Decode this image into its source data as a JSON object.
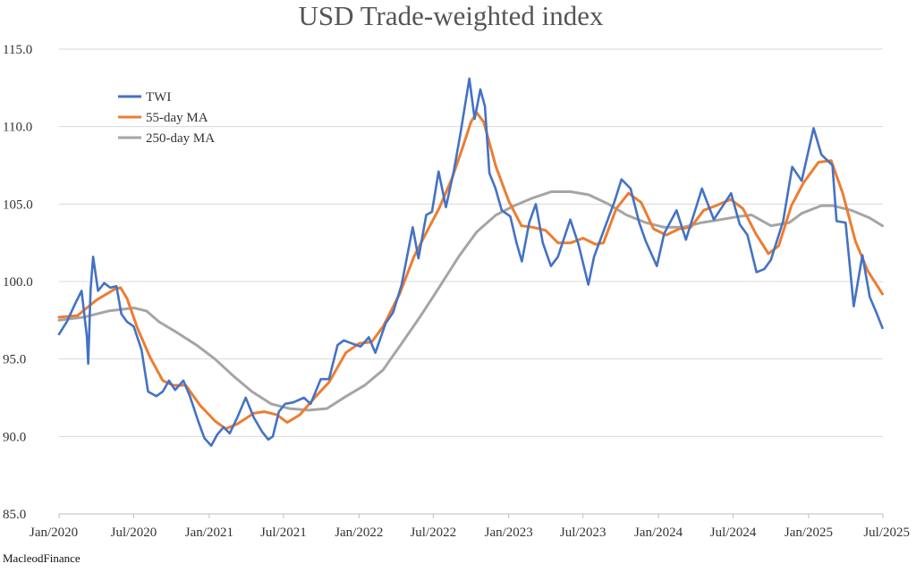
{
  "chart_data": {
    "type": "line",
    "title": "USD Trade-weighted index",
    "source": "MacleodFinance",
    "xlabel": "",
    "ylabel": "",
    "x_range": [
      "2020-01-01",
      "2025-07-01"
    ],
    "ylim": [
      85,
      115
    ],
    "y_ticks": [
      85,
      90,
      95,
      100,
      105,
      110,
      115
    ],
    "y_tick_labels": [
      "85.0",
      "90.0",
      "95.0",
      "100.0",
      "105.0",
      "110.0",
      "115.0"
    ],
    "x_ticks": [
      "2020-01-01",
      "2020-07-01",
      "2021-01-01",
      "2021-07-01",
      "2022-01-01",
      "2022-07-01",
      "2023-01-01",
      "2023-07-01",
      "2024-01-01",
      "2024-07-01",
      "2025-01-01",
      "2025-07-01"
    ],
    "x_tick_labels": [
      "Jan/2020",
      "Jul/2020",
      "Jan/2021",
      "Jul/2021",
      "Jan/2022",
      "Jul/2022",
      "Jan/2023",
      "Jul/2023",
      "Jan/2024",
      "Jul/2024",
      "Jan/2025",
      "Jul/2025"
    ],
    "grid": "horizontal",
    "legend_position": "top-left",
    "series": [
      {
        "name": "TWI",
        "color": "#4472C4",
        "points": [
          [
            "2020-01-01",
            96.6
          ],
          [
            "2020-01-20",
            97.4
          ],
          [
            "2020-02-10",
            98.6
          ],
          [
            "2020-02-25",
            99.4
          ],
          [
            "2020-03-09",
            96.4
          ],
          [
            "2020-03-12",
            94.7
          ],
          [
            "2020-03-18",
            99.5
          ],
          [
            "2020-03-24",
            101.6
          ],
          [
            "2020-04-05",
            99.4
          ],
          [
            "2020-04-20",
            99.9
          ],
          [
            "2020-05-05",
            99.6
          ],
          [
            "2020-05-20",
            99.7
          ],
          [
            "2020-06-01",
            97.9
          ],
          [
            "2020-06-15",
            97.4
          ],
          [
            "2020-07-01",
            97.1
          ],
          [
            "2020-07-20",
            95.6
          ],
          [
            "2020-08-05",
            92.9
          ],
          [
            "2020-08-25",
            92.6
          ],
          [
            "2020-09-10",
            92.9
          ],
          [
            "2020-09-25",
            93.6
          ],
          [
            "2020-10-10",
            93.0
          ],
          [
            "2020-10-30",
            93.6
          ],
          [
            "2020-11-15",
            92.6
          ],
          [
            "2020-12-05",
            91.0
          ],
          [
            "2020-12-20",
            89.9
          ],
          [
            "2021-01-06",
            89.4
          ],
          [
            "2021-01-20",
            90.1
          ],
          [
            "2021-02-05",
            90.6
          ],
          [
            "2021-02-20",
            90.2
          ],
          [
            "2021-03-10",
            91.2
          ],
          [
            "2021-03-31",
            92.5
          ],
          [
            "2021-04-20",
            91.2
          ],
          [
            "2021-05-10",
            90.3
          ],
          [
            "2021-05-25",
            89.8
          ],
          [
            "2021-06-05",
            90.0
          ],
          [
            "2021-06-20",
            91.6
          ],
          [
            "2021-07-05",
            92.1
          ],
          [
            "2021-07-25",
            92.2
          ],
          [
            "2021-08-20",
            92.5
          ],
          [
            "2021-09-05",
            92.1
          ],
          [
            "2021-09-30",
            93.7
          ],
          [
            "2021-10-20",
            93.7
          ],
          [
            "2021-11-10",
            95.9
          ],
          [
            "2021-11-25",
            96.2
          ],
          [
            "2021-12-15",
            96.0
          ],
          [
            "2022-01-05",
            95.8
          ],
          [
            "2022-01-25",
            96.4
          ],
          [
            "2022-02-10",
            95.4
          ],
          [
            "2022-03-07",
            97.3
          ],
          [
            "2022-03-25",
            98.0
          ],
          [
            "2022-04-15",
            99.8
          ],
          [
            "2022-05-12",
            103.5
          ],
          [
            "2022-05-26",
            101.5
          ],
          [
            "2022-06-14",
            104.3
          ],
          [
            "2022-06-28",
            104.5
          ],
          [
            "2022-07-14",
            107.1
          ],
          [
            "2022-08-01",
            104.8
          ],
          [
            "2022-08-20",
            107.1
          ],
          [
            "2022-09-05",
            109.5
          ],
          [
            "2022-09-27",
            113.1
          ],
          [
            "2022-10-10",
            110.5
          ],
          [
            "2022-10-24",
            112.4
          ],
          [
            "2022-11-04",
            111.3
          ],
          [
            "2022-11-15",
            107.0
          ],
          [
            "2022-11-30",
            106.0
          ],
          [
            "2022-12-15",
            104.6
          ],
          [
            "2023-01-05",
            104.2
          ],
          [
            "2023-01-20",
            102.5
          ],
          [
            "2023-02-02",
            101.3
          ],
          [
            "2023-02-20",
            103.8
          ],
          [
            "2023-03-08",
            105.0
          ],
          [
            "2023-03-25",
            102.5
          ],
          [
            "2023-04-14",
            101.0
          ],
          [
            "2023-05-01",
            101.6
          ],
          [
            "2023-05-31",
            104.0
          ],
          [
            "2023-06-20",
            102.4
          ],
          [
            "2023-07-14",
            99.8
          ],
          [
            "2023-07-28",
            101.6
          ],
          [
            "2023-08-25",
            103.6
          ],
          [
            "2023-09-15",
            105.1
          ],
          [
            "2023-10-03",
            106.6
          ],
          [
            "2023-10-25",
            106.0
          ],
          [
            "2023-11-15",
            103.8
          ],
          [
            "2023-12-01",
            102.6
          ],
          [
            "2023-12-28",
            101.0
          ],
          [
            "2024-01-15",
            103.1
          ],
          [
            "2024-02-14",
            104.6
          ],
          [
            "2024-03-08",
            102.7
          ],
          [
            "2024-04-16",
            106.0
          ],
          [
            "2024-05-15",
            104.0
          ],
          [
            "2024-06-26",
            105.7
          ],
          [
            "2024-07-17",
            103.7
          ],
          [
            "2024-08-05",
            103.0
          ],
          [
            "2024-08-27",
            100.6
          ],
          [
            "2024-09-15",
            100.8
          ],
          [
            "2024-10-01",
            101.4
          ],
          [
            "2024-10-31",
            103.9
          ],
          [
            "2024-11-22",
            107.4
          ],
          [
            "2024-12-15",
            106.5
          ],
          [
            "2025-01-13",
            109.9
          ],
          [
            "2025-02-01",
            108.2
          ],
          [
            "2025-02-28",
            107.5
          ],
          [
            "2025-03-10",
            103.9
          ],
          [
            "2025-04-01",
            103.8
          ],
          [
            "2025-04-21",
            98.4
          ],
          [
            "2025-05-12",
            101.7
          ],
          [
            "2025-05-30",
            99.0
          ],
          [
            "2025-06-15",
            98.0
          ],
          [
            "2025-06-30",
            97.0
          ]
        ]
      },
      {
        "name": "55-day MA",
        "color": "#ED7D31",
        "points": [
          [
            "2020-01-01",
            97.7
          ],
          [
            "2020-02-15",
            97.8
          ],
          [
            "2020-04-01",
            98.8
          ],
          [
            "2020-05-15",
            99.5
          ],
          [
            "2020-05-30",
            99.6
          ],
          [
            "2020-06-15",
            98.9
          ],
          [
            "2020-07-10",
            97.0
          ],
          [
            "2020-08-10",
            95.1
          ],
          [
            "2020-09-10",
            93.6
          ],
          [
            "2020-10-05",
            93.3
          ],
          [
            "2020-11-05",
            93.3
          ],
          [
            "2020-12-10",
            92.0
          ],
          [
            "2021-01-15",
            91.0
          ],
          [
            "2021-02-10",
            90.5
          ],
          [
            "2021-03-10",
            90.8
          ],
          [
            "2021-04-20",
            91.5
          ],
          [
            "2021-05-15",
            91.6
          ],
          [
            "2021-06-15",
            91.4
          ],
          [
            "2021-07-10",
            90.9
          ],
          [
            "2021-08-10",
            91.4
          ],
          [
            "2021-09-15",
            92.5
          ],
          [
            "2021-10-20",
            93.5
          ],
          [
            "2021-11-30",
            95.4
          ],
          [
            "2022-01-01",
            96.0
          ],
          [
            "2022-02-01",
            96.1
          ],
          [
            "2022-03-01",
            97.1
          ],
          [
            "2022-04-10",
            99.2
          ],
          [
            "2022-05-15",
            101.6
          ],
          [
            "2022-06-15",
            103.2
          ],
          [
            "2022-07-15",
            104.7
          ],
          [
            "2022-08-15",
            106.6
          ],
          [
            "2022-09-10",
            108.6
          ],
          [
            "2022-10-01",
            110.3
          ],
          [
            "2022-10-15",
            110.9
          ],
          [
            "2022-11-01",
            110.3
          ],
          [
            "2022-12-01",
            107.4
          ],
          [
            "2023-01-01",
            105.2
          ],
          [
            "2023-02-01",
            103.6
          ],
          [
            "2023-03-01",
            103.5
          ],
          [
            "2023-04-01",
            103.3
          ],
          [
            "2023-05-01",
            102.5
          ],
          [
            "2023-06-01",
            102.5
          ],
          [
            "2023-07-01",
            102.8
          ],
          [
            "2023-08-01",
            102.4
          ],
          [
            "2023-08-20",
            102.5
          ],
          [
            "2023-09-20",
            104.7
          ],
          [
            "2023-10-20",
            105.7
          ],
          [
            "2023-11-20",
            105.1
          ],
          [
            "2023-12-20",
            103.4
          ],
          [
            "2024-01-20",
            103.0
          ],
          [
            "2024-02-20",
            103.4
          ],
          [
            "2024-03-20",
            103.5
          ],
          [
            "2024-04-20",
            104.6
          ],
          [
            "2024-05-20",
            104.9
          ],
          [
            "2024-06-25",
            105.3
          ],
          [
            "2024-07-25",
            104.7
          ],
          [
            "2024-08-25",
            103.1
          ],
          [
            "2024-09-25",
            101.8
          ],
          [
            "2024-10-20",
            102.3
          ],
          [
            "2024-11-20",
            104.9
          ],
          [
            "2024-12-20",
            106.4
          ],
          [
            "2025-01-25",
            107.7
          ],
          [
            "2025-02-25",
            107.8
          ],
          [
            "2025-03-25",
            105.7
          ],
          [
            "2025-04-25",
            102.6
          ],
          [
            "2025-05-25",
            100.7
          ],
          [
            "2025-06-30",
            99.2
          ]
        ]
      },
      {
        "name": "250-day MA",
        "color": "#A5A5A5",
        "points": [
          [
            "2020-01-01",
            97.5
          ],
          [
            "2020-03-01",
            97.7
          ],
          [
            "2020-05-01",
            98.1
          ],
          [
            "2020-07-01",
            98.3
          ],
          [
            "2020-08-01",
            98.1
          ],
          [
            "2020-09-01",
            97.4
          ],
          [
            "2020-10-15",
            96.7
          ],
          [
            "2020-12-01",
            95.9
          ],
          [
            "2021-01-15",
            95.0
          ],
          [
            "2021-03-01",
            93.9
          ],
          [
            "2021-04-15",
            92.9
          ],
          [
            "2021-06-01",
            92.1
          ],
          [
            "2021-07-15",
            91.8
          ],
          [
            "2021-09-01",
            91.7
          ],
          [
            "2021-10-15",
            91.8
          ],
          [
            "2021-12-01",
            92.6
          ],
          [
            "2022-01-15",
            93.3
          ],
          [
            "2022-03-01",
            94.3
          ],
          [
            "2022-04-15",
            96.0
          ],
          [
            "2022-06-01",
            97.8
          ],
          [
            "2022-07-15",
            99.6
          ],
          [
            "2022-09-01",
            101.6
          ],
          [
            "2022-10-15",
            103.2
          ],
          [
            "2022-12-01",
            104.3
          ],
          [
            "2023-01-15",
            104.9
          ],
          [
            "2023-03-01",
            105.4
          ],
          [
            "2023-04-15",
            105.8
          ],
          [
            "2023-06-01",
            105.8
          ],
          [
            "2023-07-15",
            105.6
          ],
          [
            "2023-09-01",
            105.0
          ],
          [
            "2023-10-15",
            104.3
          ],
          [
            "2023-12-01",
            103.8
          ],
          [
            "2024-01-15",
            103.5
          ],
          [
            "2024-03-01",
            103.5
          ],
          [
            "2024-04-15",
            103.8
          ],
          [
            "2024-06-01",
            104.0
          ],
          [
            "2024-07-15",
            104.2
          ],
          [
            "2024-08-15",
            104.3
          ],
          [
            "2024-10-01",
            103.6
          ],
          [
            "2024-11-15",
            103.8
          ],
          [
            "2024-12-15",
            104.4
          ],
          [
            "2025-02-01",
            104.9
          ],
          [
            "2025-03-01",
            104.9
          ],
          [
            "2025-04-15",
            104.6
          ],
          [
            "2025-05-30",
            104.1
          ],
          [
            "2025-06-30",
            103.6
          ]
        ]
      }
    ]
  }
}
